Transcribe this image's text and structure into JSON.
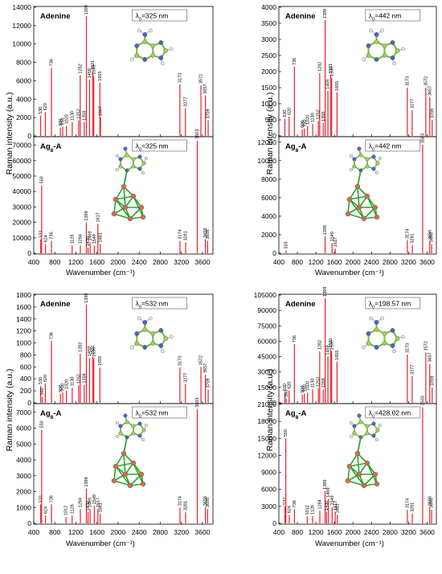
{
  "colors": {
    "spectrum": "#e8202a",
    "frame": "#000000",
    "bond": "#7dbf3a",
    "mol_c": "#9fce63",
    "mol_n": "#4a63c9",
    "mol_h": "#e8e8e8",
    "cluster_ag": "#d46a50",
    "cluster_bond": "#2aa52a"
  },
  "icons": [
    "adenine-molecule-icon",
    "ag8-adenine-complex-icon"
  ],
  "chart_data": [
    {
      "type": "bar",
      "panel": "top-left",
      "molecule": "Adenine",
      "wavelength": "325 nm",
      "ylabel": "",
      "xlabel": "",
      "ylim": [
        0,
        14000
      ],
      "yticks": [
        "0",
        "2000",
        "4000",
        "6000",
        "8000",
        "10000",
        "12000",
        "14000"
      ],
      "xlim": [
        400,
        3800
      ],
      "peaks": [
        [
          530,
          2200
        ],
        [
          620,
          2600
        ],
        [
          736,
          7400
        ],
        [
          906,
          900
        ],
        [
          950,
          1000
        ],
        [
          1020,
          1100
        ],
        [
          1130,
          1500
        ],
        [
          1252,
          1700
        ],
        [
          1282,
          6600
        ],
        [
          1358,
          1500
        ],
        [
          1399,
          13000
        ],
        [
          1459,
          6100
        ],
        [
          1521,
          7000
        ],
        [
          1539,
          6500
        ],
        [
          1655,
          5800
        ],
        [
          1667,
          2000
        ],
        [
          3173,
          5600
        ],
        [
          3277,
          3000
        ],
        [
          3572,
          5500
        ],
        [
          3657,
          4400
        ],
        [
          3709,
          1700
        ]
      ]
    },
    {
      "type": "bar",
      "panel": "top-left",
      "molecule": "Ag8-A",
      "wavelength": "325 nm",
      "ylabel": "",
      "xlabel": "",
      "ylim": [
        0,
        75000
      ],
      "yticks": [
        "0",
        "10000",
        "20000",
        "30000",
        "40000",
        "50000",
        "60000",
        "70000"
      ],
      "xlim": [
        400,
        3800
      ],
      "xticks": [
        "400",
        "800",
        "1200",
        "1600",
        "2000",
        "2400",
        "2800",
        "3200",
        "3600"
      ],
      "peaks": [
        [
          532,
          9000
        ],
        [
          550,
          44000
        ],
        [
          624,
          6000
        ],
        [
          736,
          8000
        ],
        [
          1128,
          5000
        ],
        [
          1284,
          5000
        ],
        [
          1398,
          20000
        ],
        [
          1430,
          3500
        ],
        [
          1469,
          7000
        ],
        [
          1549,
          5000
        ],
        [
          1617,
          19000
        ],
        [
          1661,
          6000
        ],
        [
          3174,
          8000
        ],
        [
          3281,
          7000
        ],
        [
          3503,
          73000
        ],
        [
          3656,
          9000
        ],
        [
          3698,
          8000
        ]
      ]
    },
    {
      "type": "bar",
      "panel": "top-right",
      "molecule": "Adenine",
      "wavelength": "442 nm",
      "ylabel": "",
      "xlabel": "",
      "ylim": [
        0,
        4000
      ],
      "yticks": [
        "0",
        "500",
        "1000",
        "1500",
        "2000",
        "2500",
        "3000",
        "3500",
        "4000"
      ],
      "xlim": [
        400,
        3800
      ],
      "peaks": [
        [
          530,
          530
        ],
        [
          620,
          600
        ],
        [
          736,
          2150
        ],
        [
          906,
          200
        ],
        [
          950,
          230
        ],
        [
          1020,
          300
        ],
        [
          1130,
          370
        ],
        [
          1252,
          460
        ],
        [
          1282,
          1950
        ],
        [
          1358,
          400
        ],
        [
          1399,
          3600
        ],
        [
          1459,
          1400
        ],
        [
          1521,
          1900
        ],
        [
          1539,
          1800
        ],
        [
          1655,
          1350
        ],
        [
          3173,
          1500
        ],
        [
          3277,
          800
        ],
        [
          3572,
          1500
        ],
        [
          3657,
          1200
        ],
        [
          3709,
          500
        ]
      ]
    },
    {
      "type": "bar",
      "panel": "top-right",
      "molecule": "Ag8-A",
      "wavelength": "442 nm",
      "ylabel": "",
      "xlabel": "",
      "ylim": [
        0,
        12500
      ],
      "yticks": [
        "0",
        "2000",
        "4000",
        "6000",
        "8000",
        "10000",
        "12000"
      ],
      "xlim": [
        400,
        3800
      ],
      "xticks": [
        "400",
        "800",
        "1200",
        "1600",
        "2000",
        "2400",
        "2800",
        "3200",
        "3600"
      ],
      "peaks": [
        [
          555,
          300
        ],
        [
          1398,
          1800
        ],
        [
          1549,
          1100
        ],
        [
          1617,
          500
        ],
        [
          3174,
          1400
        ],
        [
          3281,
          900
        ],
        [
          3503,
          11700
        ],
        [
          3656,
          1300
        ],
        [
          3698,
          1000
        ]
      ]
    },
    {
      "type": "bar",
      "panel": "bottom-left",
      "molecule": "Adenine",
      "wavelength": "532 nm",
      "ylabel": "",
      "xlabel": "",
      "ylim": [
        0,
        1800
      ],
      "yticks": [
        "0",
        "200",
        "400",
        "600",
        "800",
        "1000",
        "1200",
        "1400",
        "1600",
        "1800"
      ],
      "xlim": [
        400,
        3800
      ],
      "peaks": [
        [
          530,
          280
        ],
        [
          560,
          100
        ],
        [
          620,
          320
        ],
        [
          736,
          1030
        ],
        [
          906,
          150
        ],
        [
          950,
          170
        ],
        [
          1020,
          200
        ],
        [
          1130,
          250
        ],
        [
          1252,
          290
        ],
        [
          1282,
          820
        ],
        [
          1358,
          300
        ],
        [
          1399,
          1640
        ],
        [
          1459,
          750
        ],
        [
          1521,
          770
        ],
        [
          1539,
          740
        ],
        [
          1655,
          590
        ],
        [
          3173,
          590
        ],
        [
          3277,
          310
        ],
        [
          3572,
          600
        ],
        [
          3657,
          470
        ],
        [
          3709,
          220
        ]
      ]
    },
    {
      "type": "bar",
      "panel": "bottom-left",
      "molecule": "Ag8-A",
      "wavelength": "532 nm",
      "ylabel": "",
      "xlabel": "",
      "ylim": [
        0,
        7500
      ],
      "yticks": [
        "0",
        "1000",
        "2000",
        "3000",
        "4000",
        "5000",
        "6000",
        "7000"
      ],
      "xlim": [
        400,
        3800
      ],
      "xticks": [
        "400",
        "800",
        "1200",
        "1600",
        "2000",
        "2400",
        "2800",
        "3200",
        "3600"
      ],
      "peaks": [
        [
          532,
          1200
        ],
        [
          550,
          5900
        ],
        [
          624,
          500
        ],
        [
          736,
          1200
        ],
        [
          1012,
          400
        ],
        [
          1128,
          500
        ],
        [
          1284,
          900
        ],
        [
          1398,
          2200
        ],
        [
          1430,
          700
        ],
        [
          1469,
          900
        ],
        [
          1549,
          1100
        ],
        [
          1617,
          900
        ],
        [
          1661,
          600
        ],
        [
          3174,
          1000
        ],
        [
          3281,
          700
        ],
        [
          3503,
          7200
        ],
        [
          3656,
          1000
        ],
        [
          3698,
          900
        ]
      ]
    },
    {
      "type": "bar",
      "panel": "bottom-right",
      "molecule": "Adenine",
      "wavelength": "198.57 nm",
      "ylabel": "",
      "xlabel": "",
      "ylim": [
        0,
        105000
      ],
      "yticks": [
        "0",
        "15000",
        "30000",
        "45000",
        "60000",
        "75000",
        "90000",
        "105000"
      ],
      "xlim": [
        400,
        3800
      ],
      "peaks": [
        [
          530,
          10000
        ],
        [
          560,
          4000
        ],
        [
          620,
          12000
        ],
        [
          736,
          57000
        ],
        [
          906,
          8000
        ],
        [
          950,
          9000
        ],
        [
          1020,
          10000
        ],
        [
          1130,
          13000
        ],
        [
          1252,
          14000
        ],
        [
          1282,
          50000
        ],
        [
          1358,
          13000
        ],
        [
          1399,
          102000
        ],
        [
          1459,
          45000
        ],
        [
          1521,
          52000
        ],
        [
          1539,
          50000
        ],
        [
          1655,
          40000
        ],
        [
          3173,
          47000
        ],
        [
          3277,
          26000
        ],
        [
          3572,
          49000
        ],
        [
          3657,
          38000
        ],
        [
          3709,
          15000
        ]
      ]
    },
    {
      "type": "bar",
      "panel": "bottom-right",
      "molecule": "Ag8-A",
      "wavelength": "428.02 nm",
      "ylabel": "",
      "xlabel": "",
      "ylim": [
        0,
        21000
      ],
      "yticks": [
        "0",
        "3000",
        "6000",
        "9000",
        "12000",
        "15000",
        "18000",
        "21000"
      ],
      "xlim": [
        400,
        3800
      ],
      "xticks": [
        "400",
        "800",
        "1200",
        "1600",
        "2000",
        "2400",
        "2800",
        "3200",
        "3600"
      ],
      "peaks": [
        [
          532,
          3000
        ],
        [
          550,
          15000
        ],
        [
          624,
          1500
        ],
        [
          736,
          2500
        ],
        [
          1012,
          1200
        ],
        [
          1128,
          1300
        ],
        [
          1284,
          2200
        ],
        [
          1398,
          5700
        ],
        [
          1430,
          2000
        ],
        [
          1469,
          4300
        ],
        [
          1549,
          2900
        ],
        [
          1617,
          2000
        ],
        [
          1661,
          1500
        ],
        [
          3174,
          2400
        ],
        [
          3281,
          1700
        ],
        [
          3503,
          20500
        ],
        [
          3656,
          2800
        ],
        [
          3698,
          2400
        ]
      ]
    }
  ],
  "figure": {
    "ylabel": "Raman intensity (a.u.)",
    "xlabel": "Wavenumber (cm⁻¹)"
  }
}
